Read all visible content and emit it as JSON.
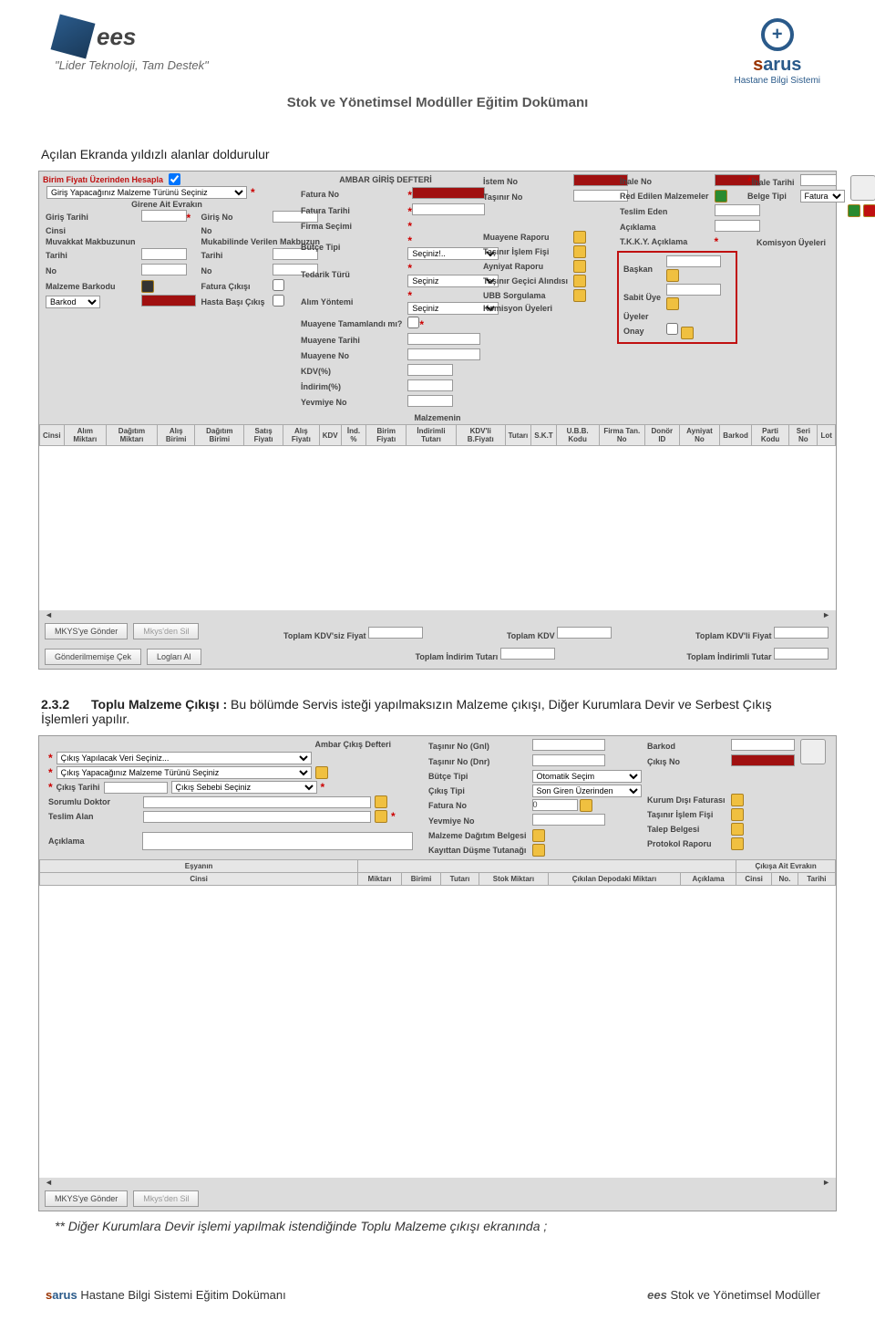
{
  "header": {
    "ees": "ees",
    "slogan": "\"Lider Teknoloji, Tam Destek\"",
    "doc_title": "Stok ve Yönetimsel Modüller Eğitim Dokümanı",
    "sarus": "sarus",
    "sarus_sub": "Hastane Bilgi Sistemi"
  },
  "intro_text": "Açılan Ekranda yıldızlı alanlar doldurulur",
  "panel1": {
    "top_red": "Birim Fiyatı Üzerinden Hesapla",
    "title": "AMBAR GİRİŞ DEFTERİ",
    "malzeme_turu": "Giriş Yapacağınız Malzeme Türünü Seçiniz",
    "girene_ait": "Girene Ait Evrakın",
    "left_labels": [
      "Giriş Tarihi",
      "Cinsi",
      "Muvakkat Makbuzunun",
      "Tarihi",
      "No",
      "Malzeme Barkodu"
    ],
    "left2_labels": [
      "Giriş No",
      "No",
      "Mukabilinde Verilen Makbuzun",
      "Tarihi",
      "No",
      "Fatura Çıkışı",
      "Hasta Başı Çıkış"
    ],
    "mid_labels": [
      "Fatura No",
      "Fatura Tarihi",
      "Firma Seçimi",
      "Bütçe Tipi",
      "Tedarik Türü",
      "Alım Yöntemi",
      "Muayene Tamamlandı mı?",
      "Muayene Tarihi",
      "Muayene No",
      "KDV(%)",
      "İndirim(%)",
      "Yevmiye No"
    ],
    "mid_sel": [
      "Seçiniz!..",
      "Seçiniz",
      "Seçiniz"
    ],
    "r1_labels": [
      "İstem No",
      "Taşınır No",
      "",
      "Muayene Raporu",
      "Taşınır İşlem Fişi",
      "Ayniyat Raporu",
      "Taşınır Geçici Alındısı",
      "UBB Sorgulama",
      "Komisyon Üyeleri"
    ],
    "r2_labels": [
      "İhale No",
      "Red Edilen Malzemeler",
      "Teslim Eden",
      "Açıklama",
      "T.K.K.Y. Açıklama",
      "Başkan",
      "Sabit Üye",
      "Üyeler",
      "Onay"
    ],
    "r3_labels": [
      "İhale Tarihi",
      "Belge Tipi",
      "",
      "",
      "",
      "Komisyon Üyeleri"
    ],
    "belge_tipi_opt": "Fatura",
    "barkod": "Barkod",
    "malzemenin": "Malzemenin",
    "grid_cols": [
      "Cinsi",
      "Alım Miktarı",
      "Dağıtım Miktarı",
      "Alış Birimi",
      "Dağıtım Birimi",
      "Satış Fiyatı",
      "Alış Fiyatı",
      "KDV",
      "İnd. %",
      "Birim Fiyatı",
      "İndirimli Tutarı",
      "KDV'li B.Fiyatı",
      "Tutarı",
      "S.K.T",
      "U.B.B. Kodu",
      "Firma Tan. No",
      "Donör ID",
      "Ayniyat No",
      "Barkod",
      "Parti Kodu",
      "Seri No",
      "Lot"
    ],
    "totals": [
      "Toplam KDV'siz Fiyat",
      "Toplam KDV",
      "Toplam KDV'li Fiyat",
      "Toplam İndirim Tutarı",
      "Toplam İndirimli Tutar"
    ],
    "btns": [
      "MKYS'ye Gönder",
      "Mkys'den Sil",
      "Gönderilmemişe Çek",
      "Logları Al"
    ]
  },
  "section2": {
    "num": "2.3.2",
    "title": "Toplu Malzeme Çıkışı :",
    "desc": " Bu bölümde Servis isteği yapılmaksızın Malzeme çıkışı, Diğer Kurumlara Devir ve Serbest Çıkış İşlemleri yapılır."
  },
  "panel2": {
    "title": "Ambar Çıkış Defteri",
    "sel1": "Çıkış Yapılacak Veri Seçiniz...",
    "sel2": "Çıkış Yapacağınız Malzeme Türünü Seçiniz",
    "cikis_tarihi": "Çıkış Tarihi",
    "sel3": "Çıkış Sebebi Seçiniz",
    "sorumlu": "Sorumlu Doktor",
    "teslim": "Teslim Alan",
    "aciklama": "Açıklama",
    "r_labels": [
      "Taşınır No (Gnl)",
      "Taşınır No (Dnr)",
      "Bütçe Tipi",
      "Çıkış Tipi",
      "Fatura No",
      "Yevmiye No",
      "Malzeme Dağıtım Belgesi",
      "Kayıttan Düşme Tutanağı"
    ],
    "r2_labels": [
      "Barkod",
      "Çıkış No",
      "",
      "",
      "Kurum Dışı Faturası",
      "Taşınır İşlem Fişi",
      "Talep Belgesi",
      "Protokol Raporu"
    ],
    "butce_opt": "Otomatik Seçim",
    "cikis_tipi_opt": "Son Giren Üzerinden",
    "fatura_val": "0",
    "esyanin": "Eşyanın",
    "cikisa_ait": "Çıkışa Ait Evrakın",
    "grid_cols": [
      "Cinsi",
      "Miktarı",
      "Birimi",
      "Tutarı",
      "Stok Miktarı",
      "Çıkılan Depodaki Miktarı",
      "Açıklama",
      "Cinsi",
      "No.",
      "Tarihi"
    ],
    "btns": [
      "MKYS'ye Gönder",
      "Mkys'den Sil"
    ]
  },
  "footnote": "** Diğer Kurumlara Devir işlemi yapılmak istendiğinde Toplu Malzeme çıkışı ekranında ;",
  "footer": {
    "left": " Hastane Bilgi Sistemi Eğitim Dokümanı",
    "right": " Stok ve Yönetimsel Modüller"
  }
}
